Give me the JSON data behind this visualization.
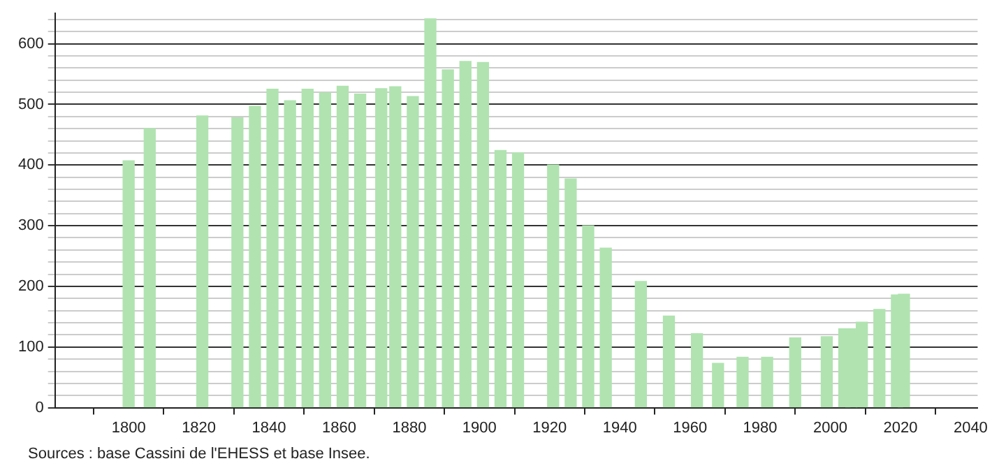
{
  "chart_data": {
    "type": "bar",
    "color": "#b0e3b0",
    "x": [
      1800,
      1806,
      1821,
      1831,
      1836,
      1841,
      1846,
      1851,
      1856,
      1861,
      1866,
      1872,
      1876,
      1881,
      1886,
      1891,
      1896,
      1901,
      1906,
      1911,
      1921,
      1926,
      1931,
      1936,
      1946,
      1954,
      1962,
      1968,
      1975,
      1982,
      1990,
      1999,
      2004,
      2006,
      2009,
      2014,
      2019,
      2021
    ],
    "values": [
      407,
      460,
      481,
      478,
      497,
      525,
      506,
      525,
      519,
      530,
      517,
      526,
      529,
      513,
      641,
      557,
      571,
      569,
      424,
      420,
      400,
      377,
      300,
      263,
      208,
      151,
      122,
      73,
      83,
      83,
      115,
      117,
      130,
      130,
      141,
      162,
      186,
      187
    ],
    "xlim": [
      1779,
      2042
    ],
    "xticks": [
      1800,
      1820,
      1840,
      1860,
      1880,
      1900,
      1920,
      1940,
      1960,
      1980,
      2000,
      2020,
      2040
    ],
    "ylim": [
      0,
      650
    ],
    "yticks": [
      0,
      {
        "value": 20,
        "label": null
      },
      {
        "value": 40,
        "label": null
      },
      {
        "value": 60,
        "label": null
      },
      {
        "value": 80,
        "label": null
      },
      100,
      {
        "value": 120,
        "label": null
      },
      {
        "value": 140,
        "label": null
      },
      {
        "value": 160,
        "label": null
      },
      {
        "value": 180,
        "label": null
      },
      200,
      {
        "value": 220,
        "label": null
      },
      {
        "value": 240,
        "label": null
      },
      {
        "value": 260,
        "label": null
      },
      {
        "value": 280,
        "label": null
      },
      300,
      {
        "value": 320,
        "label": null
      },
      {
        "value": 340,
        "label": null
      },
      {
        "value": 360,
        "label": null
      },
      {
        "value": 380,
        "label": null
      },
      400,
      {
        "value": 420,
        "label": null
      },
      {
        "value": 440,
        "label": null
      },
      {
        "value": 460,
        "label": null
      },
      {
        "value": 480,
        "label": null
      },
      500,
      {
        "value": 520,
        "label": null
      },
      {
        "value": 540,
        "label": null
      },
      {
        "value": 560,
        "label": null
      },
      {
        "value": 580,
        "label": null
      },
      600,
      {
        "value": 620,
        "label": null
      },
      {
        "value": 640,
        "label": null
      }
    ],
    "grid": "y",
    "legend": false,
    "annotations": [
      "Sources : base Cassini de l'EHESS et base Insee."
    ]
  }
}
